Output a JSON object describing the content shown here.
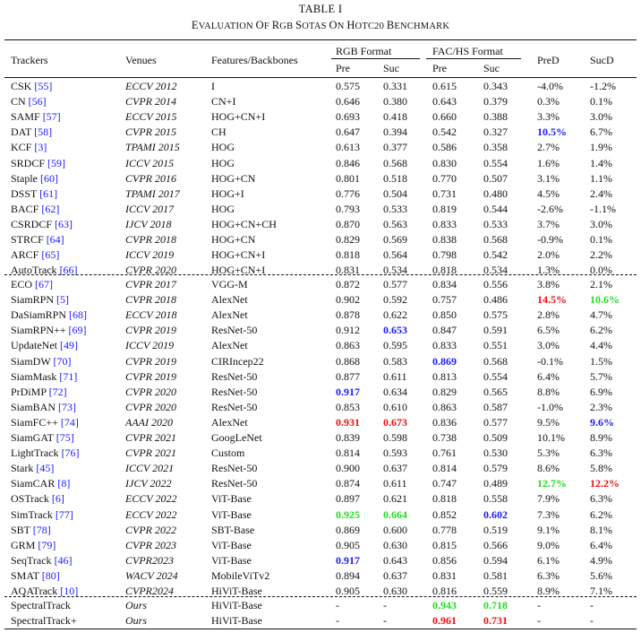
{
  "table_label": "TABLE I",
  "caption": "Evaluation of RGB SOTAs on HOTC20 Benchmark",
  "headers": {
    "trackers": "Trackers",
    "venues": "Venues",
    "features": "Features/Backbones",
    "rgb_format": "RGB Format",
    "fachs_format": "FAC/HS Format",
    "pre": "Pre",
    "suc": "Suc",
    "pred": "PreD",
    "sucd": "SucD"
  },
  "colors": {
    "blue": "#1a1aff",
    "red": "#ee1111",
    "green": "#22dd22"
  },
  "rows": [
    {
      "name": "CSK",
      "ref": "[55]",
      "venue": "ECCV 2012",
      "feat": "I",
      "rgb_pre": "0.575",
      "rgb_suc": "0.331",
      "fh_pre": "0.615",
      "fh_suc": "0.343",
      "pred": "-4.0%",
      "sucd": "-1.2%"
    },
    {
      "name": "CN",
      "ref": "[56]",
      "venue": "CVPR 2014",
      "feat": "CN+I",
      "rgb_pre": "0.646",
      "rgb_suc": "0.380",
      "fh_pre": "0.643",
      "fh_suc": "0.379",
      "pred": "0.3%",
      "sucd": "0.1%"
    },
    {
      "name": "SAMF",
      "ref": "[57]",
      "venue": "ECCV 2015",
      "feat": "HOG+CN+I",
      "rgb_pre": "0.693",
      "rgb_suc": "0.418",
      "fh_pre": "0.660",
      "fh_suc": "0.388",
      "pred": "3.3%",
      "sucd": "3.0%"
    },
    {
      "name": "DAT",
      "ref": "[58]",
      "venue": "CVPR 2015",
      "feat": "CH",
      "rgb_pre": "0.647",
      "rgb_suc": "0.394",
      "fh_pre": "0.542",
      "fh_suc": "0.327",
      "pred": "10.5%",
      "sucd": "6.7%",
      "hl": {
        "pred": "blue"
      }
    },
    {
      "name": "KCF",
      "ref": "[3]",
      "venue": "TPAMI 2015",
      "feat": "HOG",
      "rgb_pre": "0.613",
      "rgb_suc": "0.377",
      "fh_pre": "0.586",
      "fh_suc": "0.358",
      "pred": "2.7%",
      "sucd": "1.9%"
    },
    {
      "name": "SRDCF",
      "ref": "[59]",
      "venue": "ICCV 2015",
      "feat": "HOG",
      "rgb_pre": "0.846",
      "rgb_suc": "0.568",
      "fh_pre": "0.830",
      "fh_suc": "0.554",
      "pred": "1.6%",
      "sucd": "1.4%"
    },
    {
      "name": "Staple",
      "ref": "[60]",
      "venue": "CVPR 2016",
      "feat": "HOG+CN",
      "rgb_pre": "0.801",
      "rgb_suc": "0.518",
      "fh_pre": "0.770",
      "fh_suc": "0.507",
      "pred": "3.1%",
      "sucd": "1.1%"
    },
    {
      "name": "DSST",
      "ref": "[61]",
      "venue": "TPAMI 2017",
      "feat": "HOG+I",
      "rgb_pre": "0.776",
      "rgb_suc": "0.504",
      "fh_pre": "0.731",
      "fh_suc": "0.480",
      "pred": "4.5%",
      "sucd": "2.4%"
    },
    {
      "name": "BACF",
      "ref": "[62]",
      "venue": "ICCV 2017",
      "feat": "HOG",
      "rgb_pre": "0.793",
      "rgb_suc": "0.533",
      "fh_pre": "0.819",
      "fh_suc": "0.544",
      "pred": "-2.6%",
      "sucd": "-1.1%"
    },
    {
      "name": "CSRDCF",
      "ref": "[63]",
      "venue": "IJCV 2018",
      "feat": "HOG+CN+CH",
      "rgb_pre": "0.870",
      "rgb_suc": "0.563",
      "fh_pre": "0.833",
      "fh_suc": "0.533",
      "pred": "3.7%",
      "sucd": "3.0%"
    },
    {
      "name": "STRCF",
      "ref": "[64]",
      "venue": "CVPR 2018",
      "feat": "HOG+CN",
      "rgb_pre": "0.829",
      "rgb_suc": "0.569",
      "fh_pre": "0.838",
      "fh_suc": "0.568",
      "pred": "-0.9%",
      "sucd": "0.1%"
    },
    {
      "name": "ARCF",
      "ref": "[65]",
      "venue": "ICCV 2019",
      "feat": "HOG+CN+I",
      "rgb_pre": "0.818",
      "rgb_suc": "0.564",
      "fh_pre": "0.798",
      "fh_suc": "0.542",
      "pred": "2.0%",
      "sucd": "2.2%"
    },
    {
      "name": "AutoTrack",
      "ref": "[66]",
      "venue": "CVPR 2020",
      "feat": "HOG+CN+I",
      "rgb_pre": "0.831",
      "rgb_suc": "0.534",
      "fh_pre": "0.818",
      "fh_suc": "0.534",
      "pred": "1.3%",
      "sucd": "0.0%"
    },
    {
      "name": "ECO",
      "ref": "[67]",
      "venue": "CVPR 2017",
      "feat": "VGG-M",
      "rgb_pre": "0.872",
      "rgb_suc": "0.577",
      "fh_pre": "0.834",
      "fh_suc": "0.556",
      "pred": "3.8%",
      "sucd": "2.1%"
    },
    {
      "name": "SiamRPN",
      "ref": "[5]",
      "venue": "CVPR 2018",
      "feat": "AlexNet",
      "rgb_pre": "0.902",
      "rgb_suc": "0.592",
      "fh_pre": "0.757",
      "fh_suc": "0.486",
      "pred": "14.5%",
      "sucd": "10.6%",
      "hl": {
        "pred": "red",
        "sucd": "green"
      }
    },
    {
      "name": "DaSiamRPN",
      "ref": "[68]",
      "venue": "ECCV 2018",
      "feat": "AlexNet",
      "rgb_pre": "0.878",
      "rgb_suc": "0.622",
      "fh_pre": "0.850",
      "fh_suc": "0.575",
      "pred": "2.8%",
      "sucd": "4.7%"
    },
    {
      "name": "SiamRPN++",
      "ref": "[69]",
      "venue": "CVPR 2019",
      "feat": "ResNet-50",
      "rgb_pre": "0.912",
      "rgb_suc": "0.653",
      "fh_pre": "0.847",
      "fh_suc": "0.591",
      "pred": "6.5%",
      "sucd": "6.2%",
      "hl": {
        "rgb_suc": "blue"
      }
    },
    {
      "name": "UpdateNet",
      "ref": "[49]",
      "venue": "ICCV 2019",
      "feat": "AlexNet",
      "rgb_pre": "0.863",
      "rgb_suc": "0.595",
      "fh_pre": "0.833",
      "fh_suc": "0.551",
      "pred": "3.0%",
      "sucd": "4.4%"
    },
    {
      "name": "SiamDW",
      "ref": "[70]",
      "venue": "CVPR 2019",
      "feat": "CIRIncep22",
      "rgb_pre": "0.868",
      "rgb_suc": "0.583",
      "fh_pre": "0.869",
      "fh_suc": "0.568",
      "pred": "-0.1%",
      "sucd": "1.5%",
      "hl": {
        "fh_pre": "blue"
      }
    },
    {
      "name": "SiamMask",
      "ref": "[71]",
      "venue": "CVPR 2019",
      "feat": "ResNet-50",
      "rgb_pre": "0.877",
      "rgb_suc": "0.611",
      "fh_pre": "0.813",
      "fh_suc": "0.554",
      "pred": "6.4%",
      "sucd": "5.7%"
    },
    {
      "name": "PrDiMP",
      "ref": "[72]",
      "venue": "CVPR 2020",
      "feat": "ResNet-50",
      "rgb_pre": "0.917",
      "rgb_suc": "0.634",
      "fh_pre": "0.829",
      "fh_suc": "0.565",
      "pred": "8.8%",
      "sucd": "6.9%",
      "hl": {
        "rgb_pre": "blue"
      }
    },
    {
      "name": "SiamBAN",
      "ref": "[73]",
      "venue": "CVPR 2020",
      "feat": "ResNet-50",
      "rgb_pre": "0.853",
      "rgb_suc": "0.610",
      "fh_pre": "0.863",
      "fh_suc": "0.587",
      "pred": "-1.0%",
      "sucd": "2.3%"
    },
    {
      "name": "SiamFC++",
      "ref": "[74]",
      "venue": "AAAI 2020",
      "feat": "AlexNet",
      "rgb_pre": "0.931",
      "rgb_suc": "0.673",
      "fh_pre": "0.836",
      "fh_suc": "0.577",
      "pred": "9.5%",
      "sucd": "9.6%",
      "hl": {
        "rgb_pre": "red",
        "rgb_suc": "red",
        "sucd": "blue"
      }
    },
    {
      "name": "SiamGAT",
      "ref": "[75]",
      "venue": "CVPR 2021",
      "feat": "GoogLeNet",
      "rgb_pre": "0.839",
      "rgb_suc": "0.598",
      "fh_pre": "0.738",
      "fh_suc": "0.509",
      "pred": "10.1%",
      "sucd": "8.9%"
    },
    {
      "name": "LightTrack",
      "ref": "[76]",
      "venue": "CVPR 2021",
      "feat": "Custom",
      "rgb_pre": "0.814",
      "rgb_suc": "0.593",
      "fh_pre": "0.761",
      "fh_suc": "0.530",
      "pred": "5.3%",
      "sucd": "6.3%"
    },
    {
      "name": "Stark",
      "ref": "[45]",
      "venue": "ICCV 2021",
      "feat": "ResNet-50",
      "rgb_pre": "0.900",
      "rgb_suc": "0.637",
      "fh_pre": "0.814",
      "fh_suc": "0.579",
      "pred": "8.6%",
      "sucd": "5.8%"
    },
    {
      "name": "SiamCAR",
      "ref": "[8]",
      "venue": "IJCV 2022",
      "feat": "ResNet-50",
      "rgb_pre": "0.874",
      "rgb_suc": "0.611",
      "fh_pre": "0.747",
      "fh_suc": "0.489",
      "pred": "12.7%",
      "sucd": "12.2%",
      "hl": {
        "pred": "green",
        "sucd": "red"
      }
    },
    {
      "name": "OSTrack",
      "ref": "[6]",
      "venue": "ECCV 2022",
      "feat": "ViT-Base",
      "rgb_pre": "0.897",
      "rgb_suc": "0.621",
      "fh_pre": "0.818",
      "fh_suc": "0.558",
      "pred": "7.9%",
      "sucd": "6.3%"
    },
    {
      "name": "SimTrack",
      "ref": "[77]",
      "venue": "ECCV 2022",
      "feat": "ViT-Base",
      "rgb_pre": "0.925",
      "rgb_suc": "0.664",
      "fh_pre": "0.852",
      "fh_suc": "0.602",
      "pred": "7.3%",
      "sucd": "6.2%",
      "hl": {
        "rgb_pre": "green",
        "rgb_suc": "green",
        "fh_suc": "blue"
      }
    },
    {
      "name": "SBT",
      "ref": "[78]",
      "venue": "CVPR 2022",
      "feat": "SBT-Base",
      "rgb_pre": "0.869",
      "rgb_suc": "0.600",
      "fh_pre": "0.778",
      "fh_suc": "0.519",
      "pred": "9.1%",
      "sucd": "8.1%"
    },
    {
      "name": "GRM",
      "ref": "[79]",
      "venue": "CVPR 2023",
      "feat": "ViT-Base",
      "rgb_pre": "0.905",
      "rgb_suc": "0.630",
      "fh_pre": "0.815",
      "fh_suc": "0.566",
      "pred": "9.0%",
      "sucd": "6.4%"
    },
    {
      "name": "SeqTrack",
      "ref": "[46]",
      "venue": "CVPR2023",
      "feat": "ViT-Base",
      "rgb_pre": "0.917",
      "rgb_suc": "0.643",
      "fh_pre": "0.856",
      "fh_suc": "0.594",
      "pred": "6.1%",
      "sucd": "4.9%",
      "hl": {
        "rgb_pre": "blue"
      }
    },
    {
      "name": "SMAT",
      "ref": "[80]",
      "venue": "WACV 2024",
      "feat": "MobileViTv2",
      "rgb_pre": "0.894",
      "rgb_suc": "0.637",
      "fh_pre": "0.831",
      "fh_suc": "0.581",
      "pred": "6.3%",
      "sucd": "5.6%"
    },
    {
      "name": "AQATrack",
      "ref": "[10]",
      "venue": "CVPR2024",
      "feat": "HiViT-Base",
      "rgb_pre": "0.905",
      "rgb_suc": "0.630",
      "fh_pre": "0.816",
      "fh_suc": "0.559",
      "pred": "8.9%",
      "sucd": "7.1%"
    },
    {
      "name": "SpectralTrack",
      "ref": "",
      "venue": "Ours",
      "feat": "HiViT-Base",
      "rgb_pre": "-",
      "rgb_suc": "-",
      "fh_pre": "0.943",
      "fh_suc": "0.718",
      "pred": "-",
      "sucd": "-",
      "hl": {
        "fh_pre": "green",
        "fh_suc": "green"
      }
    },
    {
      "name": "SpectralTrack+",
      "ref": "",
      "venue": "Ours",
      "feat": "HiViT-Base",
      "rgb_pre": "-",
      "rgb_suc": "-",
      "fh_pre": "0.961",
      "fh_suc": "0.731",
      "pred": "-",
      "sucd": "-",
      "hl": {
        "fh_pre": "red",
        "fh_suc": "red"
      }
    }
  ]
}
